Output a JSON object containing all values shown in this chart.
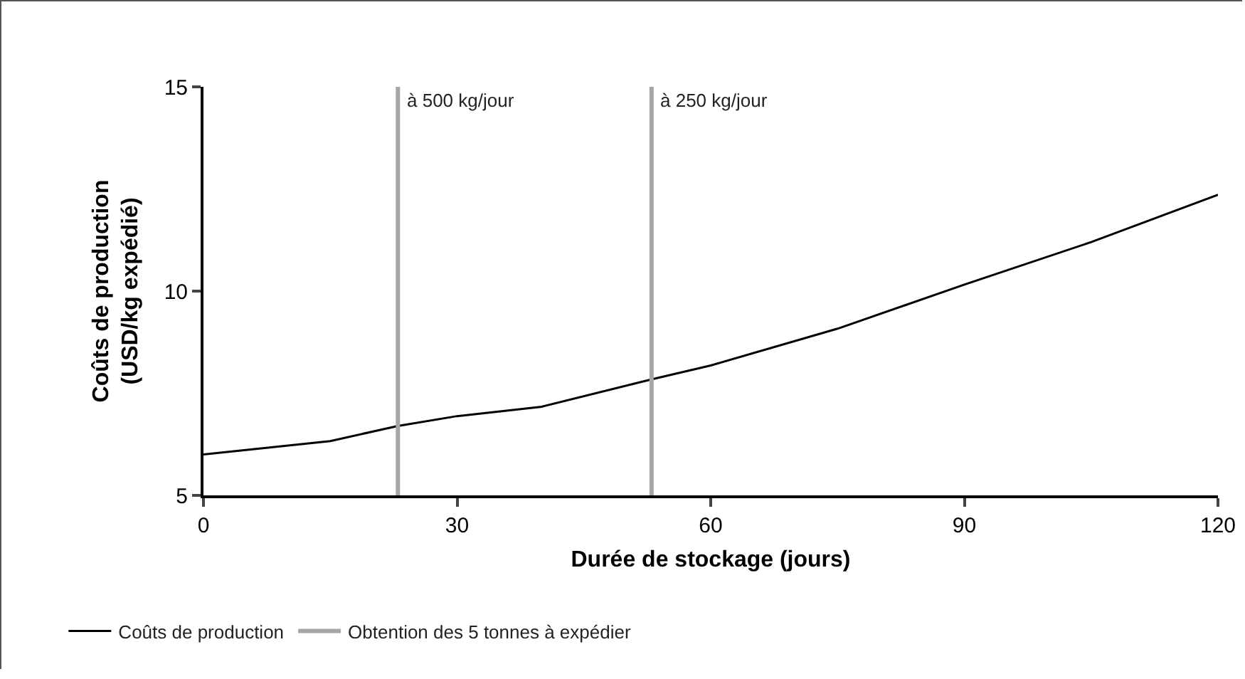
{
  "chart_data": {
    "type": "line",
    "xlabel": "Durée de stockage (jours)",
    "ylabel": "Coûts de production\n(USD/kg expédié)",
    "x": [
      0,
      15,
      23,
      30,
      40,
      53,
      60,
      75,
      90,
      105,
      120
    ],
    "series": [
      {
        "name": "Coûts de production",
        "color": "#000000",
        "values": [
          6.0,
          6.33,
          6.7,
          6.94,
          7.17,
          7.84,
          8.18,
          9.08,
          10.16,
          11.2,
          12.36
        ]
      }
    ],
    "xlim": [
      0,
      120
    ],
    "xticks": [
      0,
      30,
      60,
      90,
      120
    ],
    "ylim": [
      5,
      15
    ],
    "yticks": [
      5,
      10,
      15
    ],
    "ref_lines": [
      {
        "axis": "x",
        "value": 23,
        "label": "à 500 kg/jour",
        "color": "#a6a6a6"
      },
      {
        "axis": "x",
        "value": 53,
        "label": "à 250 kg/jour",
        "color": "#a6a6a6"
      }
    ],
    "annotations": [
      "Obtention des 5 tonnes à expédier"
    ],
    "grid": false,
    "legend": "bottom",
    "marker": "none",
    "line_style": "solid"
  }
}
